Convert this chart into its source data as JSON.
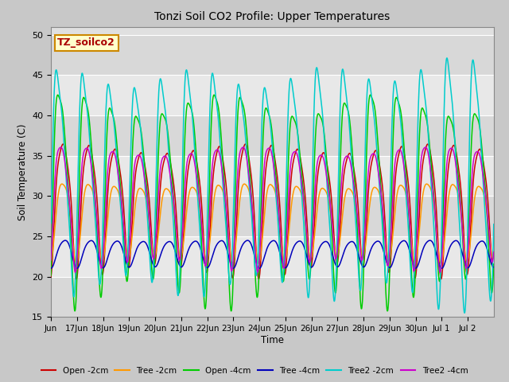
{
  "title": "Tonzi Soil CO2 Profile: Upper Temperatures",
  "xlabel": "Time",
  "ylabel": "Soil Temperature (C)",
  "ylim": [
    15,
    51
  ],
  "yticks": [
    15,
    20,
    25,
    30,
    35,
    40,
    45,
    50
  ],
  "annotation_text": "TZ_soilco2",
  "annotation_box_facecolor": "#ffffcc",
  "annotation_text_color": "#aa0000",
  "annotation_border_color": "#cc8800",
  "series_colors": {
    "Open -2cm": "#cc0000",
    "Tree -2cm": "#ff9900",
    "Open -4cm": "#00cc00",
    "Tree -4cm": "#0000bb",
    "Tree2 -2cm": "#00cccc",
    "Tree2 -4cm": "#cc00cc"
  },
  "fig_bg_color": "#c8c8c8",
  "plot_bg_color": "#e0e0e0",
  "band_colors": [
    "#d8d8d8",
    "#e8e8e8"
  ],
  "grid_line_color": "#ffffff",
  "num_points": 2000,
  "total_days": 17
}
